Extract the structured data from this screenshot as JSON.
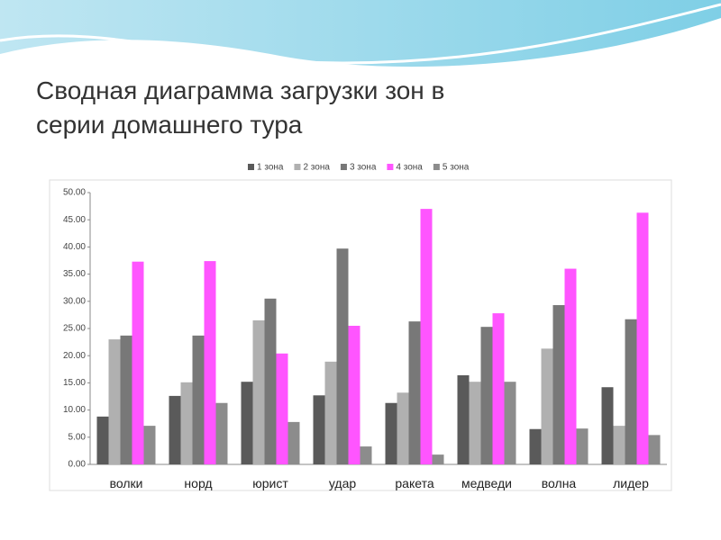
{
  "title": "Сводная диаграмма загрузки зон в серии домашнего тура",
  "chart_data": {
    "type": "bar",
    "categories": [
      "волки",
      "норд",
      "юрист",
      "удар",
      "ракета",
      "медведи",
      "волна",
      "лидер"
    ],
    "series": [
      {
        "name": "1 зона",
        "color": "#5a5a5a",
        "values": [
          8.8,
          12.6,
          15.2,
          12.7,
          11.3,
          16.4,
          6.5,
          14.2
        ]
      },
      {
        "name": "2 зона",
        "color": "#b0b0b0",
        "values": [
          23.0,
          15.1,
          26.5,
          18.9,
          13.2,
          15.2,
          21.3,
          7.1
        ]
      },
      {
        "name": "3 зона",
        "color": "#787878",
        "values": [
          23.7,
          23.7,
          30.5,
          39.7,
          26.3,
          25.3,
          29.3,
          26.7
        ]
      },
      {
        "name": "4 зона",
        "color": "#ff55ff",
        "values": [
          37.3,
          37.4,
          20.4,
          25.5,
          47.0,
          27.8,
          36.0,
          46.3
        ]
      },
      {
        "name": "5 зона",
        "color": "#8c8c8c",
        "values": [
          7.1,
          11.3,
          7.8,
          3.3,
          1.8,
          15.2,
          6.6,
          5.4
        ]
      }
    ],
    "ylim": [
      0,
      50
    ],
    "yticks": [
      {
        "value": 0,
        "label": "0.00"
      },
      {
        "value": 5,
        "label": "5.00"
      },
      {
        "value": 10,
        "label": "10.00"
      },
      {
        "value": 15,
        "label": "15.00"
      },
      {
        "value": 20,
        "label": "20.00"
      },
      {
        "value": 25,
        "label": "25.00"
      },
      {
        "value": 30,
        "label": "30.00"
      },
      {
        "value": 35,
        "label": "35.00"
      },
      {
        "value": 40,
        "label": "40.00"
      },
      {
        "value": 45,
        "label": "45.00"
      },
      {
        "value": 50,
        "label": "50.00"
      }
    ]
  }
}
